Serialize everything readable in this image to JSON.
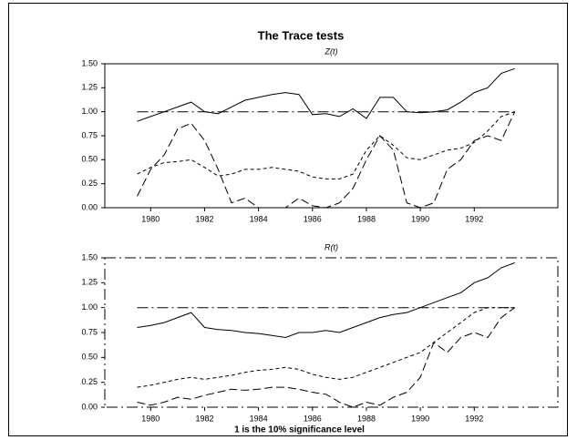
{
  "title": "The Trace tests",
  "chart_data": [
    {
      "type": "line",
      "title": "Z(t)",
      "x": [
        1979.5,
        1980,
        1980.5,
        1981,
        1981.5,
        1982,
        1982.5,
        1983,
        1983.5,
        1984,
        1984.5,
        1985,
        1985.5,
        1986,
        1986.5,
        1987,
        1987.5,
        1988,
        1988.5,
        1989,
        1989.5,
        1990,
        1990.5,
        1991,
        1991.5,
        1992,
        1992.5,
        1993,
        1993.5
      ],
      "series": [
        {
          "color": "#000",
          "dash": "solid",
          "values": [
            0.9,
            0.95,
            1.0,
            1.05,
            1.1,
            1.0,
            0.98,
            1.05,
            1.12,
            1.15,
            1.18,
            1.2,
            1.18,
            0.97,
            0.98,
            0.95,
            1.03,
            0.93,
            1.15,
            1.15,
            1.0,
            0.99,
            1.0,
            1.02,
            1.1,
            1.2,
            1.25,
            1.4,
            1.45
          ]
        },
        {
          "color": "#000",
          "dash": "short",
          "values": [
            0.35,
            0.42,
            0.47,
            0.48,
            0.5,
            0.42,
            0.33,
            0.35,
            0.4,
            0.4,
            0.42,
            0.4,
            0.38,
            0.32,
            0.3,
            0.3,
            0.35,
            0.6,
            0.75,
            0.65,
            0.52,
            0.5,
            0.55,
            0.6,
            0.62,
            0.68,
            0.8,
            0.95,
            1.0
          ]
        },
        {
          "color": "#000",
          "dash": "long",
          "values": [
            0.12,
            0.4,
            0.55,
            0.82,
            0.88,
            0.7,
            0.4,
            0.05,
            0.1,
            0.0,
            0.0,
            0.0,
            0.1,
            0.02,
            0.0,
            0.05,
            0.2,
            0.5,
            0.75,
            0.6,
            0.05,
            0.0,
            0.05,
            0.4,
            0.5,
            0.7,
            0.75,
            0.7,
            1.0
          ]
        },
        {
          "color": "#000",
          "dash": "dashdot",
          "values": [
            1,
            1,
            1,
            1,
            1,
            1,
            1,
            1,
            1,
            1,
            1,
            1,
            1,
            1,
            1,
            1,
            1,
            1,
            1,
            1,
            1,
            1,
            1,
            1,
            1,
            1,
            1,
            1,
            1
          ]
        }
      ],
      "xlim": [
        1978.3,
        1995.1
      ],
      "xticks": [
        1980,
        1982,
        1984,
        1986,
        1988,
        1990,
        1992
      ],
      "ylim": [
        0,
        1.5
      ],
      "yticks": [
        {
          "value": 0,
          "label": "0.00"
        },
        {
          "value": 0.25,
          "label": "0.25"
        },
        {
          "value": 0.5,
          "label": "0.50"
        },
        {
          "value": 0.75,
          "label": "0.75"
        },
        {
          "value": 1,
          "label": "1.00"
        },
        {
          "value": 1.25,
          "label": "1.25"
        },
        {
          "value": 1.5,
          "label": "1.50"
        }
      ],
      "frame": "solid"
    },
    {
      "type": "line",
      "title": "R(t)",
      "xlabel": "1 is the 10% significance level",
      "x": [
        1979.5,
        1980,
        1980.5,
        1981,
        1981.5,
        1982,
        1982.5,
        1983,
        1983.5,
        1984,
        1984.5,
        1985,
        1985.5,
        1986,
        1986.5,
        1987,
        1987.5,
        1988,
        1988.5,
        1989,
        1989.5,
        1990,
        1990.5,
        1991,
        1991.5,
        1992,
        1992.5,
        1993,
        1993.5
      ],
      "series": [
        {
          "color": "#000",
          "dash": "solid",
          "values": [
            0.8,
            0.82,
            0.85,
            0.9,
            0.95,
            0.8,
            0.78,
            0.77,
            0.75,
            0.74,
            0.72,
            0.7,
            0.75,
            0.75,
            0.77,
            0.75,
            0.8,
            0.85,
            0.9,
            0.93,
            0.95,
            1.0,
            1.05,
            1.1,
            1.15,
            1.25,
            1.3,
            1.4,
            1.45
          ]
        },
        {
          "color": "#000",
          "dash": "short",
          "values": [
            0.2,
            0.22,
            0.25,
            0.28,
            0.3,
            0.28,
            0.3,
            0.32,
            0.35,
            0.37,
            0.38,
            0.4,
            0.38,
            0.33,
            0.3,
            0.28,
            0.3,
            0.35,
            0.4,
            0.45,
            0.5,
            0.55,
            0.65,
            0.75,
            0.85,
            0.95,
            1.0,
            1.0,
            1.0
          ]
        },
        {
          "color": "#000",
          "dash": "long",
          "values": [
            0.05,
            0.02,
            0.05,
            0.1,
            0.08,
            0.12,
            0.15,
            0.18,
            0.17,
            0.18,
            0.2,
            0.2,
            0.18,
            0.15,
            0.13,
            0.05,
            0.0,
            0.05,
            0.02,
            0.1,
            0.15,
            0.3,
            0.65,
            0.55,
            0.7,
            0.75,
            0.7,
            0.9,
            1.0
          ]
        },
        {
          "color": "#000",
          "dash": "dashdot",
          "values": [
            1,
            1,
            1,
            1,
            1,
            1,
            1,
            1,
            1,
            1,
            1,
            1,
            1,
            1,
            1,
            1,
            1,
            1,
            1,
            1,
            1,
            1,
            1,
            1,
            1,
            1,
            1,
            1,
            1
          ]
        }
      ],
      "xlim": [
        1978.3,
        1995.1
      ],
      "xticks": [
        1980,
        1982,
        1984,
        1986,
        1988,
        1990,
        1992
      ],
      "ylim": [
        0,
        1.5
      ],
      "yticks": [
        {
          "value": 0,
          "label": "0.00"
        },
        {
          "value": 0.25,
          "label": "0.25"
        },
        {
          "value": 0.5,
          "label": "0.50"
        },
        {
          "value": 0.75,
          "label": "0.75"
        },
        {
          "value": 1,
          "label": "1.00"
        },
        {
          "value": 1.25,
          "label": "1.25"
        },
        {
          "value": 1.5,
          "label": "1.50"
        }
      ],
      "frame": "dashdot"
    }
  ]
}
